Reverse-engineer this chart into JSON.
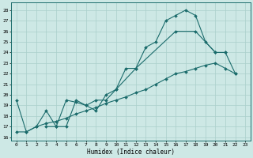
{
  "xlabel": "Humidex (Indice chaleur)",
  "background_color": "#cde8e5",
  "line_color": "#1a6b6b",
  "grid_color": "#aacfcb",
  "xlim": [
    -0.5,
    23.5
  ],
  "ylim": [
    15.7,
    28.7
  ],
  "yticks": [
    16,
    17,
    18,
    19,
    20,
    21,
    22,
    23,
    24,
    25,
    26,
    27,
    28
  ],
  "xticks": [
    0,
    1,
    2,
    3,
    4,
    5,
    6,
    7,
    8,
    9,
    10,
    11,
    12,
    13,
    14,
    15,
    16,
    17,
    18,
    19,
    20,
    21,
    22,
    23
  ],
  "line1_x": [
    0,
    1,
    2,
    3,
    4,
    5,
    6,
    7,
    8,
    9,
    10,
    11,
    12,
    13,
    14,
    15,
    16,
    17,
    18,
    19,
    20,
    21,
    22
  ],
  "line1_y": [
    19.5,
    16.5,
    17.0,
    18.5,
    17.0,
    19.5,
    19.3,
    19.0,
    18.5,
    20.0,
    20.5,
    22.5,
    22.5,
    24.5,
    25.0,
    27.0,
    27.5,
    28.0,
    27.5,
    25.0,
    24.0,
    24.0,
    22.0
  ],
  "line2_x": [
    3,
    4,
    5,
    6,
    7,
    8,
    9,
    10,
    12,
    16,
    18,
    20,
    21
  ],
  "line2_y": [
    17.0,
    17.0,
    17.0,
    19.5,
    19.0,
    19.5,
    19.5,
    20.5,
    22.5,
    26.0,
    26.0,
    24.0,
    24.0
  ],
  "line3_x": [
    0,
    1,
    2,
    3,
    4,
    5,
    6,
    7,
    8,
    9,
    10,
    11,
    12,
    13,
    14,
    15,
    16,
    17,
    18,
    19,
    20,
    21,
    22
  ],
  "line3_y": [
    16.5,
    16.5,
    17.0,
    17.3,
    17.5,
    17.8,
    18.2,
    18.5,
    18.8,
    19.2,
    19.5,
    19.8,
    20.2,
    20.5,
    21.0,
    21.5,
    22.0,
    22.2,
    22.5,
    22.8,
    23.0,
    22.5,
    22.0
  ]
}
